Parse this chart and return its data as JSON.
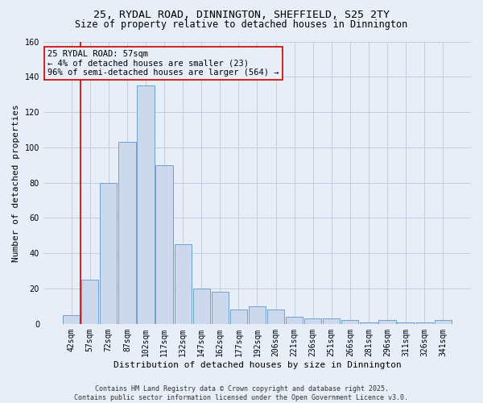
{
  "title_line1": "25, RYDAL ROAD, DINNINGTON, SHEFFIELD, S25 2TY",
  "title_line2": "Size of property relative to detached houses in Dinnington",
  "xlabel": "Distribution of detached houses by size in Dinnington",
  "ylabel": "Number of detached properties",
  "categories": [
    "42sqm",
    "57sqm",
    "72sqm",
    "87sqm",
    "102sqm",
    "117sqm",
    "132sqm",
    "147sqm",
    "162sqm",
    "177sqm",
    "192sqm",
    "206sqm",
    "221sqm",
    "236sqm",
    "251sqm",
    "266sqm",
    "281sqm",
    "296sqm",
    "311sqm",
    "326sqm",
    "341sqm"
  ],
  "values": [
    5,
    25,
    80,
    103,
    135,
    90,
    45,
    20,
    18,
    8,
    10,
    8,
    4,
    3,
    3,
    2,
    1,
    2,
    1,
    1,
    2
  ],
  "bar_color": "#ccd9ed",
  "bar_edge_color": "#6fa0cc",
  "highlight_bar_index": 1,
  "highlight_edge_color": "#cc0000",
  "annotation_box_text": "25 RYDAL ROAD: 57sqm\n← 4% of detached houses are smaller (23)\n96% of semi-detached houses are larger (564) →",
  "annotation_edge_color": "#cc0000",
  "vline_color": "#cc0000",
  "ylim": [
    0,
    160
  ],
  "yticks": [
    0,
    20,
    40,
    60,
    80,
    100,
    120,
    140,
    160
  ],
  "grid_color": "#c0cfe0",
  "bg_color": "#e8eef8",
  "footer_line1": "Contains HM Land Registry data © Crown copyright and database right 2025.",
  "footer_line2": "Contains public sector information licensed under the Open Government Licence v3.0.",
  "title_fontsize": 9.5,
  "subtitle_fontsize": 8.5,
  "ylabel_fontsize": 8,
  "xlabel_fontsize": 8,
  "tick_fontsize": 7,
  "annotation_fontsize": 7.5,
  "footer_fontsize": 6
}
